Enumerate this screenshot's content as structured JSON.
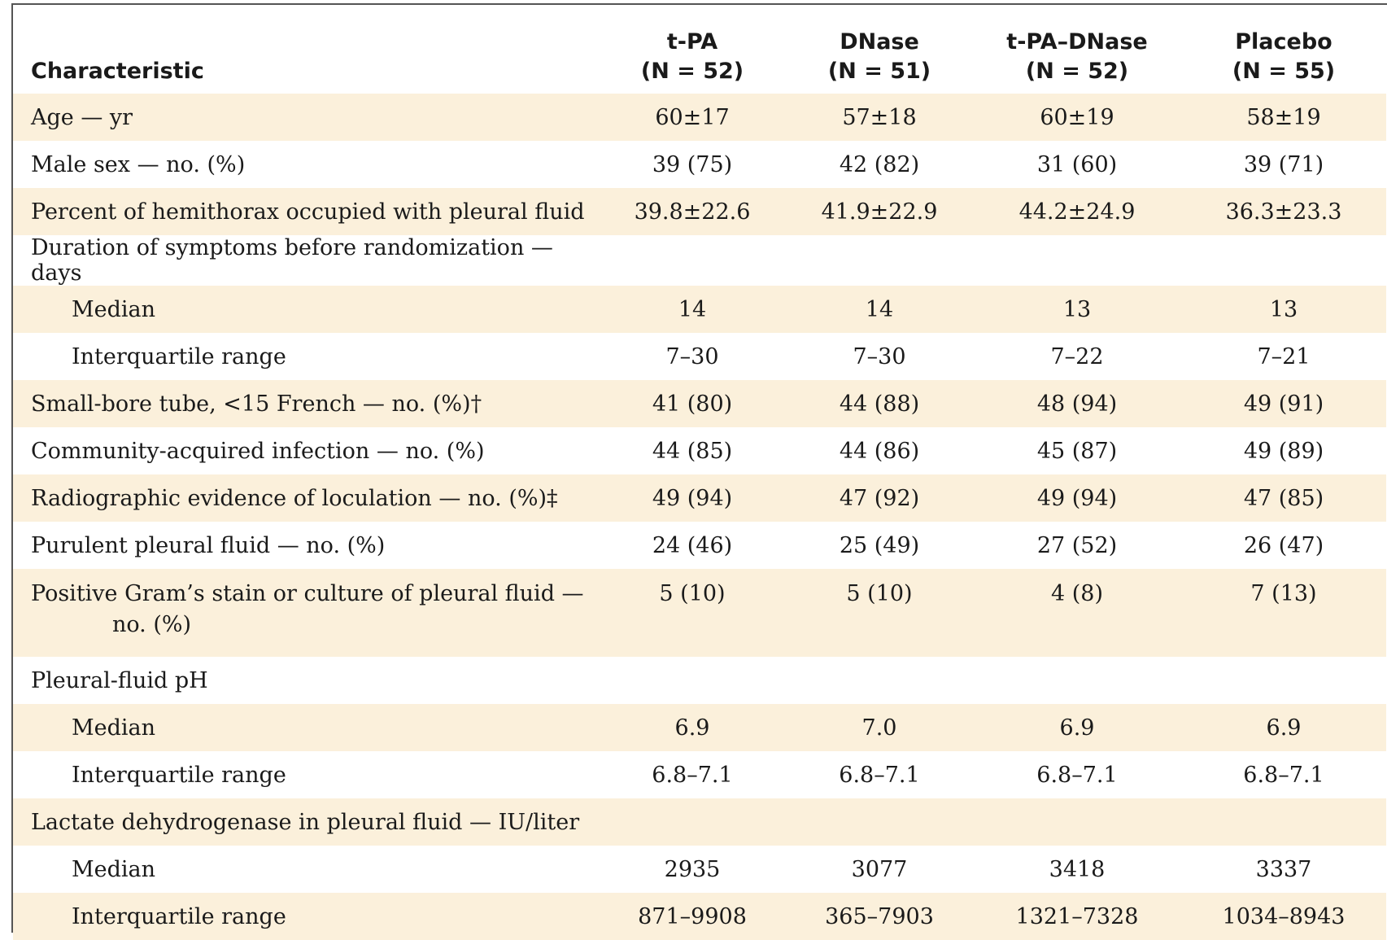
{
  "table": {
    "headers": [
      {
        "line1": "",
        "line2": "Characteristic"
      },
      {
        "line1": "t-PA",
        "line2": "(N = 52)"
      },
      {
        "line1": "DNase",
        "line2": "(N = 51)"
      },
      {
        "line1": "t-PA–DNase",
        "line2": "(N = 52)"
      },
      {
        "line1": "Placebo",
        "line2": "(N = 55)"
      }
    ],
    "rows": [
      {
        "label": "Age — yr",
        "cells": [
          "60±17",
          "57±18",
          "60±19",
          "58±19"
        ]
      },
      {
        "label": "Male sex — no. (%)",
        "cells": [
          "39 (75)",
          "42 (82)",
          "31 (60)",
          "39 (71)"
        ]
      },
      {
        "label": "Percent of hemithorax occupied with pleural fluid",
        "cells": [
          "39.8±22.6",
          "41.9±22.9",
          "44.2±24.9",
          "36.3±23.3"
        ]
      },
      {
        "label": "Duration of symptoms before randomization — days",
        "cells": [
          "",
          "",
          "",
          ""
        ]
      },
      {
        "label": "Median",
        "cells": [
          "14",
          "14",
          "13",
          "13"
        ]
      },
      {
        "label": "Interquartile range",
        "cells": [
          "7–30",
          "7–30",
          "7–22",
          "7–21"
        ]
      },
      {
        "label": "Small-bore tube, <15 French — no. (%)†",
        "cells": [
          "41 (80)",
          "44 (88)",
          "48 (94)",
          "49 (91)"
        ]
      },
      {
        "label": "Community-acquired infection — no. (%)",
        "cells": [
          "44 (85)",
          "44 (86)",
          "45 (87)",
          "49 (89)"
        ]
      },
      {
        "label": "Radiographic evidence of loculation — no. (%)‡",
        "cells": [
          "49 (94)",
          "47 (92)",
          "49 (94)",
          "47 (85)"
        ]
      },
      {
        "label": "Purulent pleural fluid — no. (%)",
        "cells": [
          "24 (46)",
          "25 (49)",
          "27 (52)",
          "26 (47)"
        ]
      },
      {
        "label": "Positive Gram’s stain or culture of pleural fluid —",
        "label_cont": "no. (%)",
        "cells": [
          "5 (10)",
          "5 (10)",
          "4 (8)",
          "7 (13)"
        ]
      },
      {
        "label": "Pleural-fluid pH",
        "cells": [
          "",
          "",
          "",
          ""
        ]
      },
      {
        "label": "Median",
        "cells": [
          "6.9",
          "7.0",
          "6.9",
          "6.9"
        ]
      },
      {
        "label": "Interquartile range",
        "cells": [
          "6.8–7.1",
          "6.8–7.1",
          "6.8–7.1",
          "6.8–7.1"
        ]
      },
      {
        "label": "Lactate dehydrogenase in pleural fluid — IU/liter",
        "cells": [
          "",
          "",
          "",
          ""
        ]
      },
      {
        "label": "Median",
        "cells": [
          "2935",
          "3077",
          "3418",
          "3337"
        ]
      },
      {
        "label": "Interquartile range",
        "cells": [
          "871–9908",
          "365–7903",
          "1321–7328",
          "1034–8943"
        ]
      }
    ]
  },
  "colors": {
    "shade": "#fbf0db",
    "border": "#555555"
  }
}
